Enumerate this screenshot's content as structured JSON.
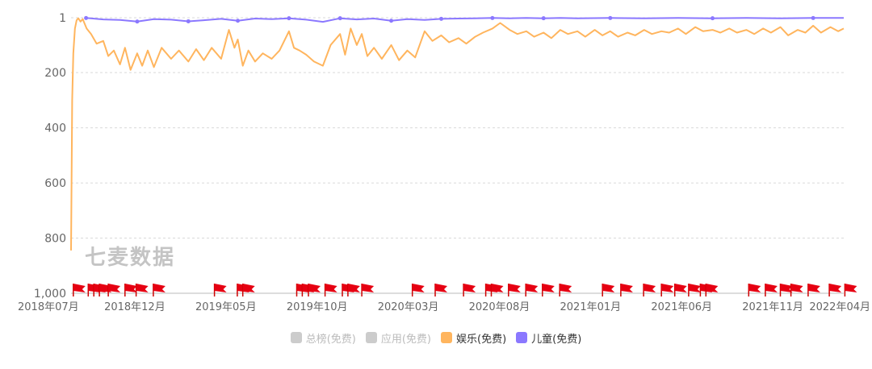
{
  "chart_data": {
    "type": "line",
    "watermark": "七麦数据",
    "y_axis": {
      "inverted": true,
      "min": 1,
      "max": 1000,
      "ticks": [
        1,
        200,
        400,
        600,
        800,
        1000
      ],
      "tick_labels": [
        "1",
        "200",
        "400",
        "600",
        "800",
        "1,000"
      ]
    },
    "x_axis": {
      "start": "2018-07-05",
      "end": "2022-04-25",
      "tick_labels": [
        "2018年07月",
        "2018年12月",
        "2019年05月",
        "2019年10月",
        "2020年03月",
        "2020年08月",
        "2021年01月",
        "2021年06月",
        "2021年11月",
        "2022年04月"
      ]
    },
    "legend": [
      {
        "name": "总榜(免费)",
        "color": "#cccccc",
        "active": false
      },
      {
        "name": "应用(免费)",
        "color": "#cccccc",
        "active": false
      },
      {
        "name": "娱乐(免费)",
        "color": "#ffb55e",
        "active": true
      },
      {
        "name": "儿童(免费)",
        "color": "#8b78ff",
        "active": true
      }
    ],
    "series": [
      {
        "name": "娱乐(免费)",
        "color": "#ffb55e",
        "points": [
          [
            "2018-07-05",
            845
          ],
          [
            "2018-07-07",
            300
          ],
          [
            "2018-07-09",
            130
          ],
          [
            "2018-07-12",
            40
          ],
          [
            "2018-07-15",
            10
          ],
          [
            "2018-07-18",
            3
          ],
          [
            "2018-07-22",
            15
          ],
          [
            "2018-07-26",
            6
          ],
          [
            "2018-08-02",
            40
          ],
          [
            "2018-08-10",
            60
          ],
          [
            "2018-08-20",
            95
          ],
          [
            "2018-09-01",
            85
          ],
          [
            "2018-09-10",
            140
          ],
          [
            "2018-09-20",
            120
          ],
          [
            "2018-10-01",
            170
          ],
          [
            "2018-10-10",
            110
          ],
          [
            "2018-10-20",
            190
          ],
          [
            "2018-11-01",
            130
          ],
          [
            "2018-11-10",
            175
          ],
          [
            "2018-11-20",
            120
          ],
          [
            "2018-12-01",
            180
          ],
          [
            "2018-12-15",
            110
          ],
          [
            "2019-01-01",
            150
          ],
          [
            "2019-01-15",
            120
          ],
          [
            "2019-02-01",
            160
          ],
          [
            "2019-02-15",
            115
          ],
          [
            "2019-03-01",
            155
          ],
          [
            "2019-03-15",
            110
          ],
          [
            "2019-04-01",
            150
          ],
          [
            "2019-04-15",
            45
          ],
          [
            "2019-04-25",
            110
          ],
          [
            "2019-05-01",
            80
          ],
          [
            "2019-05-10",
            175
          ],
          [
            "2019-05-20",
            120
          ],
          [
            "2019-06-01",
            160
          ],
          [
            "2019-06-15",
            130
          ],
          [
            "2019-07-01",
            150
          ],
          [
            "2019-07-15",
            120
          ],
          [
            "2019-08-01",
            50
          ],
          [
            "2019-08-10",
            110
          ],
          [
            "2019-08-20",
            120
          ],
          [
            "2019-09-01",
            135
          ],
          [
            "2019-09-15",
            160
          ],
          [
            "2019-10-01",
            175
          ],
          [
            "2019-10-15",
            100
          ],
          [
            "2019-11-01",
            60
          ],
          [
            "2019-11-10",
            135
          ],
          [
            "2019-11-20",
            40
          ],
          [
            "2019-12-01",
            100
          ],
          [
            "2019-12-10",
            60
          ],
          [
            "2019-12-20",
            140
          ],
          [
            "2020-01-01",
            110
          ],
          [
            "2020-01-15",
            150
          ],
          [
            "2020-02-01",
            100
          ],
          [
            "2020-02-15",
            155
          ],
          [
            "2020-03-01",
            120
          ],
          [
            "2020-03-15",
            145
          ],
          [
            "2020-04-01",
            50
          ],
          [
            "2020-04-15",
            85
          ],
          [
            "2020-05-01",
            65
          ],
          [
            "2020-05-15",
            90
          ],
          [
            "2020-06-01",
            75
          ],
          [
            "2020-06-15",
            95
          ],
          [
            "2020-07-01",
            70
          ],
          [
            "2020-07-15",
            55
          ],
          [
            "2020-08-01",
            40
          ],
          [
            "2020-08-15",
            20
          ],
          [
            "2020-09-01",
            45
          ],
          [
            "2020-09-15",
            60
          ],
          [
            "2020-10-01",
            50
          ],
          [
            "2020-10-15",
            70
          ],
          [
            "2020-11-01",
            55
          ],
          [
            "2020-11-15",
            75
          ],
          [
            "2020-12-01",
            45
          ],
          [
            "2020-12-15",
            60
          ],
          [
            "2021-01-01",
            50
          ],
          [
            "2021-01-15",
            70
          ],
          [
            "2021-02-01",
            45
          ],
          [
            "2021-02-15",
            65
          ],
          [
            "2021-03-01",
            50
          ],
          [
            "2021-03-15",
            70
          ],
          [
            "2021-04-01",
            55
          ],
          [
            "2021-04-15",
            65
          ],
          [
            "2021-05-01",
            45
          ],
          [
            "2021-05-15",
            60
          ],
          [
            "2021-06-01",
            50
          ],
          [
            "2021-06-15",
            55
          ],
          [
            "2021-07-01",
            40
          ],
          [
            "2021-07-15",
            60
          ],
          [
            "2021-08-01",
            35
          ],
          [
            "2021-08-15",
            50
          ],
          [
            "2021-09-01",
            45
          ],
          [
            "2021-09-15",
            55
          ],
          [
            "2021-10-01",
            40
          ],
          [
            "2021-10-15",
            55
          ],
          [
            "2021-11-01",
            45
          ],
          [
            "2021-11-15",
            60
          ],
          [
            "2021-12-01",
            40
          ],
          [
            "2021-12-15",
            55
          ],
          [
            "2022-01-01",
            35
          ],
          [
            "2022-01-15",
            65
          ],
          [
            "2022-02-01",
            45
          ],
          [
            "2022-02-15",
            55
          ],
          [
            "2022-03-01",
            30
          ],
          [
            "2022-03-15",
            55
          ],
          [
            "2022-04-01",
            35
          ],
          [
            "2022-04-15",
            50
          ],
          [
            "2022-04-25",
            40
          ]
        ]
      },
      {
        "name": "儿童(免费)",
        "color": "#8b78ff",
        "points": [
          [
            "2018-08-01",
            2
          ],
          [
            "2018-09-01",
            7
          ],
          [
            "2018-10-01",
            9
          ],
          [
            "2018-11-01",
            15
          ],
          [
            "2018-12-01",
            6
          ],
          [
            "2019-01-01",
            8
          ],
          [
            "2019-02-01",
            14
          ],
          [
            "2019-03-01",
            10
          ],
          [
            "2019-04-01",
            5
          ],
          [
            "2019-05-01",
            12
          ],
          [
            "2019-06-01",
            4
          ],
          [
            "2019-07-01",
            6
          ],
          [
            "2019-08-01",
            3
          ],
          [
            "2019-09-01",
            8
          ],
          [
            "2019-10-01",
            16
          ],
          [
            "2019-11-01",
            3
          ],
          [
            "2019-12-01",
            7
          ],
          [
            "2020-01-01",
            4
          ],
          [
            "2020-02-01",
            12
          ],
          [
            "2020-03-01",
            6
          ],
          [
            "2020-04-01",
            9
          ],
          [
            "2020-05-01",
            5
          ],
          [
            "2020-06-01",
            4
          ],
          [
            "2020-07-01",
            3
          ],
          [
            "2020-08-01",
            2
          ],
          [
            "2020-09-01",
            3
          ],
          [
            "2020-10-01",
            2
          ],
          [
            "2020-11-01",
            3
          ],
          [
            "2020-12-01",
            2
          ],
          [
            "2021-01-01",
            3
          ],
          [
            "2021-03-01",
            2
          ],
          [
            "2021-05-01",
            3
          ],
          [
            "2021-07-01",
            2
          ],
          [
            "2021-09-01",
            3
          ],
          [
            "2021-11-01",
            2
          ],
          [
            "2022-01-01",
            3
          ],
          [
            "2022-03-01",
            2
          ],
          [
            "2022-04-25",
            2
          ]
        ]
      }
    ],
    "flag_markers": [
      "2018-07-09",
      "2018-08-05",
      "2018-08-15",
      "2018-08-25",
      "2018-09-10",
      "2018-10-10",
      "2018-10-30",
      "2018-11-30",
      "2019-03-20",
      "2019-04-30",
      "2019-05-10",
      "2019-08-15",
      "2019-08-25",
      "2019-09-05",
      "2019-10-05",
      "2019-11-05",
      "2019-11-15",
      "2019-12-10",
      "2020-03-10",
      "2020-04-20",
      "2020-06-10",
      "2020-07-20",
      "2020-07-30",
      "2020-08-30",
      "2020-09-30",
      "2020-10-30",
      "2020-11-30",
      "2021-02-15",
      "2021-03-20",
      "2021-04-30",
      "2021-06-01",
      "2021-06-25",
      "2021-07-20",
      "2021-08-10",
      "2021-08-20",
      "2021-11-05",
      "2021-12-05",
      "2022-01-01",
      "2022-01-20",
      "2022-02-20",
      "2022-03-30",
      "2022-04-27"
    ]
  }
}
